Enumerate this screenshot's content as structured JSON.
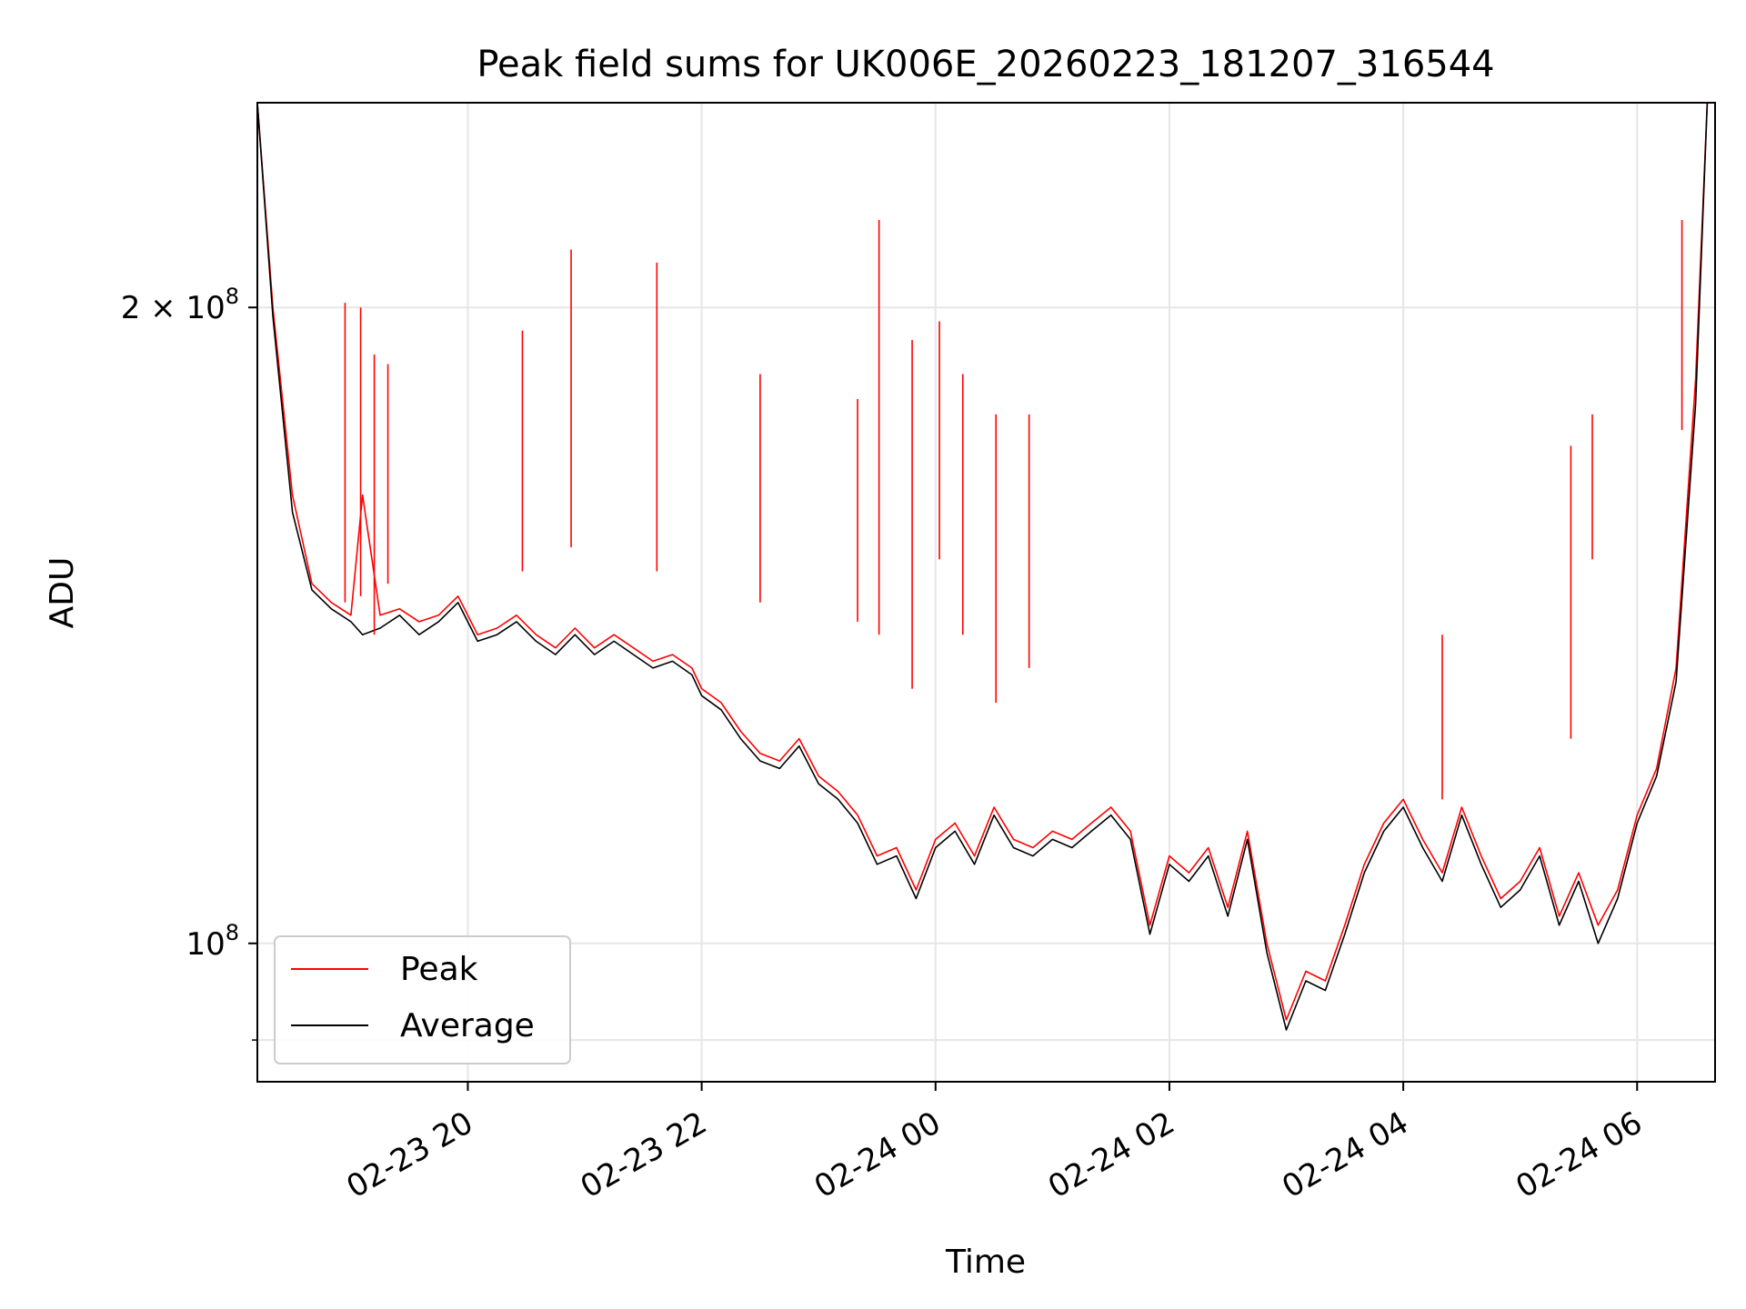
{
  "chart_data": {
    "type": "line",
    "title": "Peak field sums for UK006E_20260223_181207_316544",
    "xlabel": "Time",
    "ylabel": "ADU",
    "yscale": "log",
    "grid": true,
    "legend_position": "lower-left",
    "xlim": [
      "2026-02-23 18:12",
      "2026-02-24 06:40"
    ],
    "ylim": [
      86000000,
      250000000
    ],
    "x_ticks": [
      {
        "t": "2026-02-23 20:00",
        "label": "02-23 20"
      },
      {
        "t": "2026-02-23 22:00",
        "label": "02-23 22"
      },
      {
        "t": "2026-02-24 00:00",
        "label": "02-24 00"
      },
      {
        "t": "2026-02-24 02:00",
        "label": "02-24 02"
      },
      {
        "t": "2026-02-24 04:00",
        "label": "02-24 04"
      },
      {
        "t": "2026-02-24 06:00",
        "label": "02-24 06"
      }
    ],
    "y_ticks": [
      {
        "value": 200000000,
        "base": "2 × 10",
        "exp": "8"
      },
      {
        "value": 100000000,
        "base": "10",
        "exp": "8"
      }
    ],
    "y_minor_ticks": [
      90000000
    ],
    "series": [
      {
        "name": "Peak",
        "color": "#ff0000",
        "x": [
          "2026-02-23 18:12",
          "2026-02-23 18:20",
          "2026-02-23 18:30",
          "2026-02-23 18:40",
          "2026-02-23 18:50",
          "2026-02-23 19:00",
          "2026-02-23 19:06",
          "2026-02-23 19:15",
          "2026-02-23 19:25",
          "2026-02-23 19:35",
          "2026-02-23 19:45",
          "2026-02-23 19:55",
          "2026-02-23 20:05",
          "2026-02-23 20:15",
          "2026-02-23 20:25",
          "2026-02-23 20:35",
          "2026-02-23 20:45",
          "2026-02-23 20:55",
          "2026-02-23 21:05",
          "2026-02-23 21:15",
          "2026-02-23 21:25",
          "2026-02-23 21:35",
          "2026-02-23 21:45",
          "2026-02-23 21:55",
          "2026-02-23 22:00",
          "2026-02-23 22:10",
          "2026-02-23 22:20",
          "2026-02-23 22:30",
          "2026-02-23 22:40",
          "2026-02-23 22:50",
          "2026-02-23 23:00",
          "2026-02-23 23:10",
          "2026-02-23 23:20",
          "2026-02-23 23:30",
          "2026-02-23 23:40",
          "2026-02-23 23:50",
          "2026-02-24 00:00",
          "2026-02-24 00:10",
          "2026-02-24 00:20",
          "2026-02-24 00:30",
          "2026-02-24 00:40",
          "2026-02-24 00:50",
          "2026-02-24 01:00",
          "2026-02-24 01:10",
          "2026-02-24 01:20",
          "2026-02-24 01:30",
          "2026-02-24 01:40",
          "2026-02-24 01:50",
          "2026-02-24 02:00",
          "2026-02-24 02:10",
          "2026-02-24 02:20",
          "2026-02-24 02:30",
          "2026-02-24 02:40",
          "2026-02-24 02:50",
          "2026-02-24 03:00",
          "2026-02-24 03:10",
          "2026-02-24 03:20",
          "2026-02-24 03:30",
          "2026-02-24 03:40",
          "2026-02-24 03:50",
          "2026-02-24 04:00",
          "2026-02-24 04:10",
          "2026-02-24 04:20",
          "2026-02-24 04:30",
          "2026-02-24 04:40",
          "2026-02-24 04:50",
          "2026-02-24 05:00",
          "2026-02-24 05:10",
          "2026-02-24 05:20",
          "2026-02-24 05:30",
          "2026-02-24 05:40",
          "2026-02-24 05:50",
          "2026-02-24 06:00",
          "2026-02-24 06:10",
          "2026-02-24 06:20",
          "2026-02-24 06:30",
          "2026-02-24 06:36"
        ],
        "y": [
          250000000,
          200000000,
          163000000,
          148000000,
          145000000,
          143000000,
          163000000,
          143000000,
          144000000,
          142000000,
          143000000,
          146000000,
          140000000,
          141000000,
          143000000,
          140000000,
          138000000,
          141000000,
          138000000,
          140000000,
          138000000,
          136000000,
          137000000,
          135000000,
          132000000,
          130000000,
          126000000,
          123000000,
          122000000,
          125000000,
          120000000,
          118000000,
          115000000,
          110000000,
          111000000,
          106000000,
          112000000,
          114000000,
          110000000,
          116000000,
          112000000,
          111000000,
          113000000,
          112000000,
          114000000,
          116000000,
          113000000,
          102000000,
          110000000,
          108000000,
          111000000,
          104000000,
          113000000,
          100000000,
          92000000,
          97000000,
          96000000,
          102000000,
          109000000,
          114000000,
          117000000,
          112000000,
          108000000,
          116000000,
          110000000,
          105000000,
          107000000,
          111000000,
          103000000,
          108000000,
          102000000,
          106000000,
          115000000,
          121000000,
          135000000,
          185000000,
          250000000
        ]
      },
      {
        "name": "Average",
        "color": "#000000",
        "x": [
          "2026-02-23 18:12",
          "2026-02-23 18:20",
          "2026-02-23 18:30",
          "2026-02-23 18:40",
          "2026-02-23 18:50",
          "2026-02-23 19:00",
          "2026-02-23 19:06",
          "2026-02-23 19:15",
          "2026-02-23 19:25",
          "2026-02-23 19:35",
          "2026-02-23 19:45",
          "2026-02-23 19:55",
          "2026-02-23 20:05",
          "2026-02-23 20:15",
          "2026-02-23 20:25",
          "2026-02-23 20:35",
          "2026-02-23 20:45",
          "2026-02-23 20:55",
          "2026-02-23 21:05",
          "2026-02-23 21:15",
          "2026-02-23 21:25",
          "2026-02-23 21:35",
          "2026-02-23 21:45",
          "2026-02-23 21:55",
          "2026-02-23 22:00",
          "2026-02-23 22:10",
          "2026-02-23 22:20",
          "2026-02-23 22:30",
          "2026-02-23 22:40",
          "2026-02-23 22:50",
          "2026-02-23 23:00",
          "2026-02-23 23:10",
          "2026-02-23 23:20",
          "2026-02-23 23:30",
          "2026-02-23 23:40",
          "2026-02-23 23:50",
          "2026-02-24 00:00",
          "2026-02-24 00:10",
          "2026-02-24 00:20",
          "2026-02-24 00:30",
          "2026-02-24 00:40",
          "2026-02-24 00:50",
          "2026-02-24 01:00",
          "2026-02-24 01:10",
          "2026-02-24 01:20",
          "2026-02-24 01:30",
          "2026-02-24 01:40",
          "2026-02-24 01:50",
          "2026-02-24 02:00",
          "2026-02-24 02:10",
          "2026-02-24 02:20",
          "2026-02-24 02:30",
          "2026-02-24 02:40",
          "2026-02-24 02:50",
          "2026-02-24 03:00",
          "2026-02-24 03:10",
          "2026-02-24 03:20",
          "2026-02-24 03:30",
          "2026-02-24 03:40",
          "2026-02-24 03:50",
          "2026-02-24 04:00",
          "2026-02-24 04:10",
          "2026-02-24 04:20",
          "2026-02-24 04:30",
          "2026-02-24 04:40",
          "2026-02-24 04:50",
          "2026-02-24 05:00",
          "2026-02-24 05:10",
          "2026-02-24 05:20",
          "2026-02-24 05:30",
          "2026-02-24 05:40",
          "2026-02-24 05:50",
          "2026-02-24 06:00",
          "2026-02-24 06:10",
          "2026-02-24 06:20",
          "2026-02-24 06:30",
          "2026-02-24 06:36"
        ],
        "y": [
          250000000,
          198000000,
          160000000,
          147000000,
          144000000,
          142000000,
          140000000,
          141000000,
          143000000,
          140000000,
          142000000,
          145000000,
          139000000,
          140000000,
          142000000,
          139000000,
          137000000,
          140000000,
          137000000,
          139000000,
          137000000,
          135000000,
          136000000,
          134000000,
          131000000,
          129000000,
          125000000,
          122000000,
          121000000,
          124000000,
          119000000,
          117000000,
          114000000,
          109000000,
          110000000,
          105000000,
          111000000,
          113000000,
          109000000,
          115000000,
          111000000,
          110000000,
          112000000,
          111000000,
          113000000,
          115000000,
          112000000,
          101000000,
          109000000,
          107000000,
          110000000,
          103000000,
          112000000,
          99000000,
          91000000,
          96000000,
          95000000,
          101000000,
          108000000,
          113000000,
          116000000,
          111000000,
          107000000,
          115000000,
          109000000,
          104000000,
          106000000,
          110000000,
          102000000,
          107000000,
          100000000,
          105000000,
          114000000,
          120000000,
          133000000,
          180000000,
          250000000
        ]
      }
    ],
    "peak_spikes": [
      {
        "t": "2026-02-23 18:57",
        "peak": 201000000,
        "avg": 145000000
      },
      {
        "t": "2026-02-23 19:05",
        "peak": 200000000,
        "avg": 146000000
      },
      {
        "t": "2026-02-23 19:12",
        "peak": 190000000,
        "avg": 140000000
      },
      {
        "t": "2026-02-23 19:19",
        "peak": 188000000,
        "avg": 148000000
      },
      {
        "t": "2026-02-23 20:28",
        "peak": 195000000,
        "avg": 150000000
      },
      {
        "t": "2026-02-23 20:53",
        "peak": 213000000,
        "avg": 154000000
      },
      {
        "t": "2026-02-23 21:37",
        "peak": 210000000,
        "avg": 150000000
      },
      {
        "t": "2026-02-23 22:30",
        "peak": 186000000,
        "avg": 145000000
      },
      {
        "t": "2026-02-23 23:20",
        "peak": 181000000,
        "avg": 142000000
      },
      {
        "t": "2026-02-23 23:31",
        "peak": 220000000,
        "avg": 140000000
      },
      {
        "t": "2026-02-23 23:48",
        "peak": 193000000,
        "avg": 132000000
      },
      {
        "t": "2026-02-24 00:02",
        "peak": 197000000,
        "avg": 152000000
      },
      {
        "t": "2026-02-24 00:14",
        "peak": 186000000,
        "avg": 140000000
      },
      {
        "t": "2026-02-24 00:31",
        "peak": 178000000,
        "avg": 130000000
      },
      {
        "t": "2026-02-24 00:48",
        "peak": 178000000,
        "avg": 135000000
      },
      {
        "t": "2026-02-24 04:20",
        "peak": 140000000,
        "avg": 117000000
      },
      {
        "t": "2026-02-24 05:26",
        "peak": 172000000,
        "avg": 125000000
      },
      {
        "t": "2026-02-24 05:37",
        "peak": 178000000,
        "avg": 152000000
      },
      {
        "t": "2026-02-24 06:23",
        "peak": 220000000,
        "avg": 175000000
      }
    ]
  }
}
